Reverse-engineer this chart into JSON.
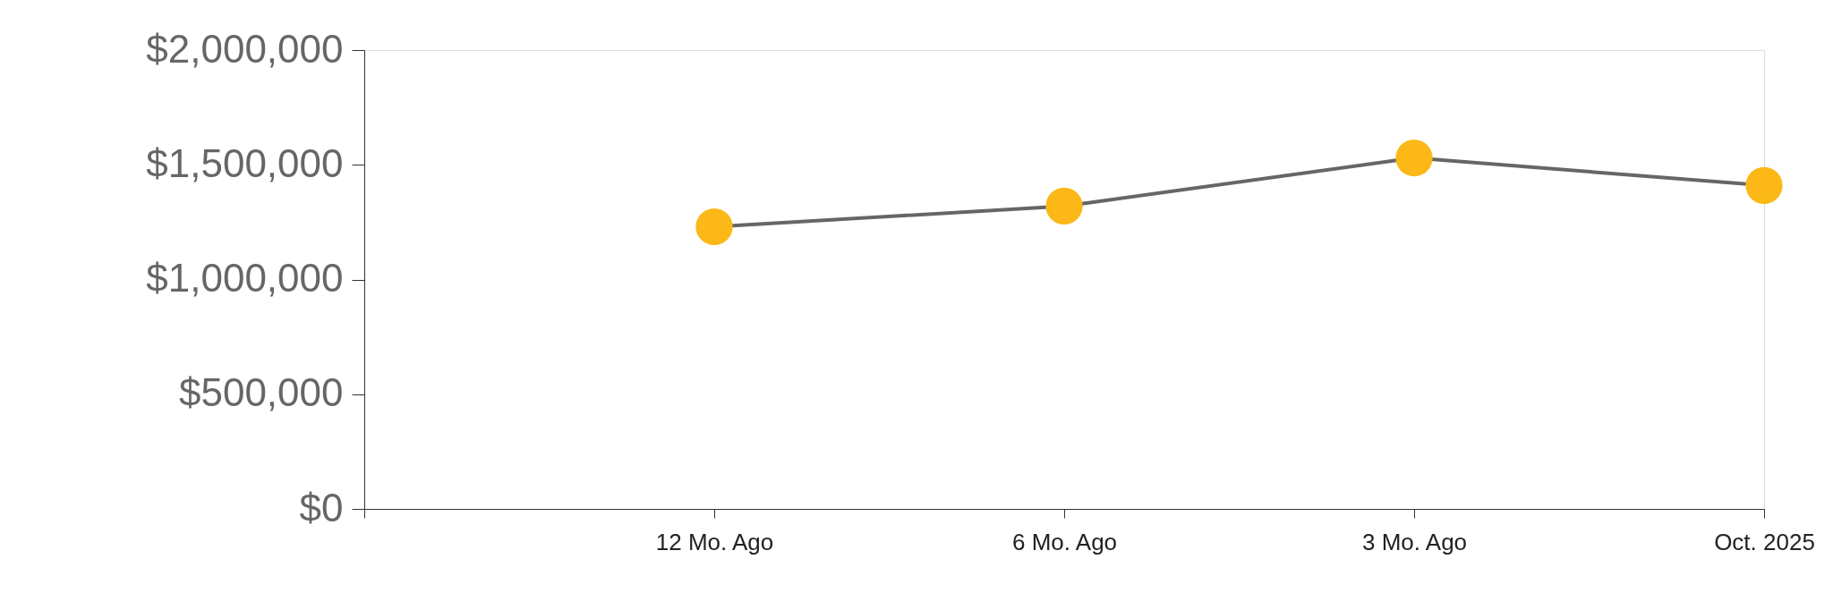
{
  "chart_data": {
    "type": "line",
    "categories": [
      null,
      "12 Mo. Ago",
      "6 Mo. Ago",
      "3 Mo. Ago",
      "Oct. 2025"
    ],
    "series": [
      {
        "color": "#666666",
        "colors": [
          null,
          "#fbb817",
          "#fbb817",
          "#fbb817",
          "#fbb817"
        ],
        "values": [
          null,
          1230000,
          1320000,
          1530000,
          1410000
        ]
      }
    ],
    "ylim": [
      0,
      2000000
    ],
    "yticks": [
      {
        "value": 0,
        "label": "$0"
      },
      {
        "value": 500000,
        "label": "$500,000"
      },
      {
        "value": 1000000,
        "label": "$1,000,000"
      },
      {
        "value": 1500000,
        "label": "$1,500,000"
      },
      {
        "value": 2000000,
        "label": "$2,000,000"
      }
    ],
    "marker": "circle",
    "line_style": "solid",
    "grid": false
  }
}
